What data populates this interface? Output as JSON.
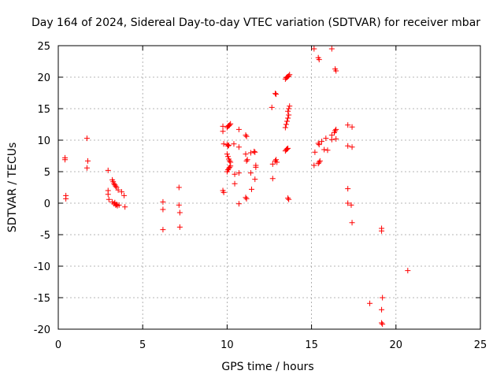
{
  "chart_data": {
    "type": "scatter",
    "title": "Day 164 of 2024, Sidereal Day-to-day VTEC variation (SDTVAR) for receiver mbar",
    "xlabel": "GPS time / hours",
    "ylabel": "SDTVAR / TECUs",
    "xlim": [
      0,
      25
    ],
    "ylim": [
      -20,
      25
    ],
    "xticks": [
      0,
      5,
      10,
      15,
      20,
      25
    ],
    "yticks": [
      -20,
      -15,
      -10,
      -5,
      0,
      5,
      10,
      15,
      20,
      25
    ],
    "grid": true,
    "marker": "+",
    "color": "#ff0000",
    "series": [
      {
        "name": "SDTVAR",
        "points": [
          [
            0.4,
            7.2
          ],
          [
            0.4,
            6.9
          ],
          [
            0.45,
            1.2
          ],
          [
            0.45,
            0.7
          ],
          [
            1.7,
            10.3
          ],
          [
            1.75,
            6.7
          ],
          [
            1.7,
            5.6
          ],
          [
            2.95,
            5.2
          ],
          [
            2.95,
            2.0
          ],
          [
            2.95,
            1.4
          ],
          [
            3.0,
            0.6
          ],
          [
            3.2,
            3.7
          ],
          [
            3.25,
            3.4
          ],
          [
            3.3,
            3.1
          ],
          [
            3.35,
            2.9
          ],
          [
            3.4,
            2.7
          ],
          [
            3.45,
            2.5
          ],
          [
            3.2,
            0.2
          ],
          [
            3.3,
            -0.1
          ],
          [
            3.4,
            -0.3
          ],
          [
            3.5,
            -0.4
          ],
          [
            3.35,
            0.1
          ],
          [
            3.45,
            -0.2
          ],
          [
            3.6,
            -0.3
          ],
          [
            3.55,
            2.1
          ],
          [
            3.75,
            1.8
          ],
          [
            3.9,
            1.2
          ],
          [
            3.95,
            -0.6
          ],
          [
            6.2,
            0.2
          ],
          [
            6.2,
            -1.0
          ],
          [
            6.2,
            -4.2
          ],
          [
            7.15,
            2.5
          ],
          [
            7.15,
            -0.3
          ],
          [
            7.2,
            -1.5
          ],
          [
            7.2,
            -3.8
          ],
          [
            9.75,
            12.2
          ],
          [
            9.75,
            11.4
          ],
          [
            9.8,
            9.4
          ],
          [
            9.75,
            2.0
          ],
          [
            9.8,
            1.7
          ],
          [
            10.0,
            12.0
          ],
          [
            10.05,
            12.2
          ],
          [
            10.1,
            12.3
          ],
          [
            10.15,
            12.4
          ],
          [
            10.2,
            12.6
          ],
          [
            10.0,
            9.3
          ],
          [
            10.05,
            9.1
          ],
          [
            10.1,
            9.2
          ],
          [
            10.0,
            7.8
          ],
          [
            10.05,
            7.4
          ],
          [
            10.1,
            7.0
          ],
          [
            10.15,
            6.7
          ],
          [
            10.2,
            6.5
          ],
          [
            10.0,
            5.0
          ],
          [
            10.05,
            5.3
          ],
          [
            10.1,
            5.5
          ],
          [
            10.15,
            5.7
          ],
          [
            10.2,
            5.9
          ],
          [
            10.4,
            9.4
          ],
          [
            10.45,
            4.6
          ],
          [
            10.45,
            3.1
          ],
          [
            10.7,
            11.7
          ],
          [
            10.7,
            8.9
          ],
          [
            10.7,
            4.8
          ],
          [
            10.7,
            -0.1
          ],
          [
            11.1,
            10.8
          ],
          [
            11.15,
            10.6
          ],
          [
            11.1,
            7.8
          ],
          [
            11.15,
            6.7
          ],
          [
            11.2,
            6.9
          ],
          [
            11.1,
            0.9
          ],
          [
            11.15,
            0.7
          ],
          [
            11.4,
            8.0
          ],
          [
            11.4,
            4.8
          ],
          [
            11.45,
            2.2
          ],
          [
            11.6,
            8.2
          ],
          [
            11.65,
            8.1
          ],
          [
            11.7,
            6.0
          ],
          [
            11.7,
            5.7
          ],
          [
            11.65,
            3.8
          ],
          [
            12.65,
            15.2
          ],
          [
            12.7,
            6.2
          ],
          [
            12.7,
            3.9
          ],
          [
            12.85,
            17.4
          ],
          [
            12.9,
            17.3
          ],
          [
            12.85,
            6.7
          ],
          [
            12.9,
            6.9
          ],
          [
            12.95,
            6.5
          ],
          [
            13.45,
            19.7
          ],
          [
            13.5,
            19.9
          ],
          [
            13.55,
            20.0
          ],
          [
            13.6,
            20.1
          ],
          [
            13.65,
            20.2
          ],
          [
            13.7,
            20.4
          ],
          [
            13.45,
            12.0
          ],
          [
            13.5,
            12.5
          ],
          [
            13.55,
            13.0
          ],
          [
            13.6,
            13.5
          ],
          [
            13.65,
            14.0
          ],
          [
            13.6,
            14.6
          ],
          [
            13.65,
            15.0
          ],
          [
            13.7,
            15.4
          ],
          [
            13.45,
            8.3
          ],
          [
            13.5,
            8.5
          ],
          [
            13.55,
            8.6
          ],
          [
            13.6,
            8.7
          ],
          [
            13.6,
            0.8
          ],
          [
            13.65,
            0.6
          ],
          [
            15.15,
            24.5
          ],
          [
            15.15,
            6.0
          ],
          [
            15.2,
            8.1
          ],
          [
            15.4,
            23.1
          ],
          [
            15.45,
            22.8
          ],
          [
            15.4,
            9.5
          ],
          [
            15.45,
            9.3
          ],
          [
            15.5,
            6.7
          ],
          [
            15.45,
            6.5
          ],
          [
            15.4,
            6.3
          ],
          [
            15.6,
            9.8
          ],
          [
            15.75,
            8.5
          ],
          [
            15.85,
            10.3
          ],
          [
            15.95,
            8.4
          ],
          [
            16.2,
            24.5
          ],
          [
            16.2,
            10.1
          ],
          [
            16.2,
            10.8
          ],
          [
            16.4,
            21.3
          ],
          [
            16.45,
            21.0
          ],
          [
            16.35,
            11.2
          ],
          [
            16.4,
            11.5
          ],
          [
            16.45,
            11.7
          ],
          [
            16.45,
            10.2
          ],
          [
            17.15,
            12.4
          ],
          [
            17.15,
            9.1
          ],
          [
            17.15,
            2.3
          ],
          [
            17.15,
            0.0
          ],
          [
            17.4,
            12.1
          ],
          [
            17.4,
            8.9
          ],
          [
            17.35,
            -0.3
          ],
          [
            17.4,
            -3.1
          ],
          [
            18.45,
            -15.9
          ],
          [
            19.15,
            -4.0
          ],
          [
            19.15,
            -4.4
          ],
          [
            19.2,
            -15.0
          ],
          [
            19.15,
            -16.9
          ],
          [
            19.15,
            -19.0
          ],
          [
            19.2,
            -19.2
          ],
          [
            20.7,
            -10.7
          ]
        ]
      }
    ]
  }
}
